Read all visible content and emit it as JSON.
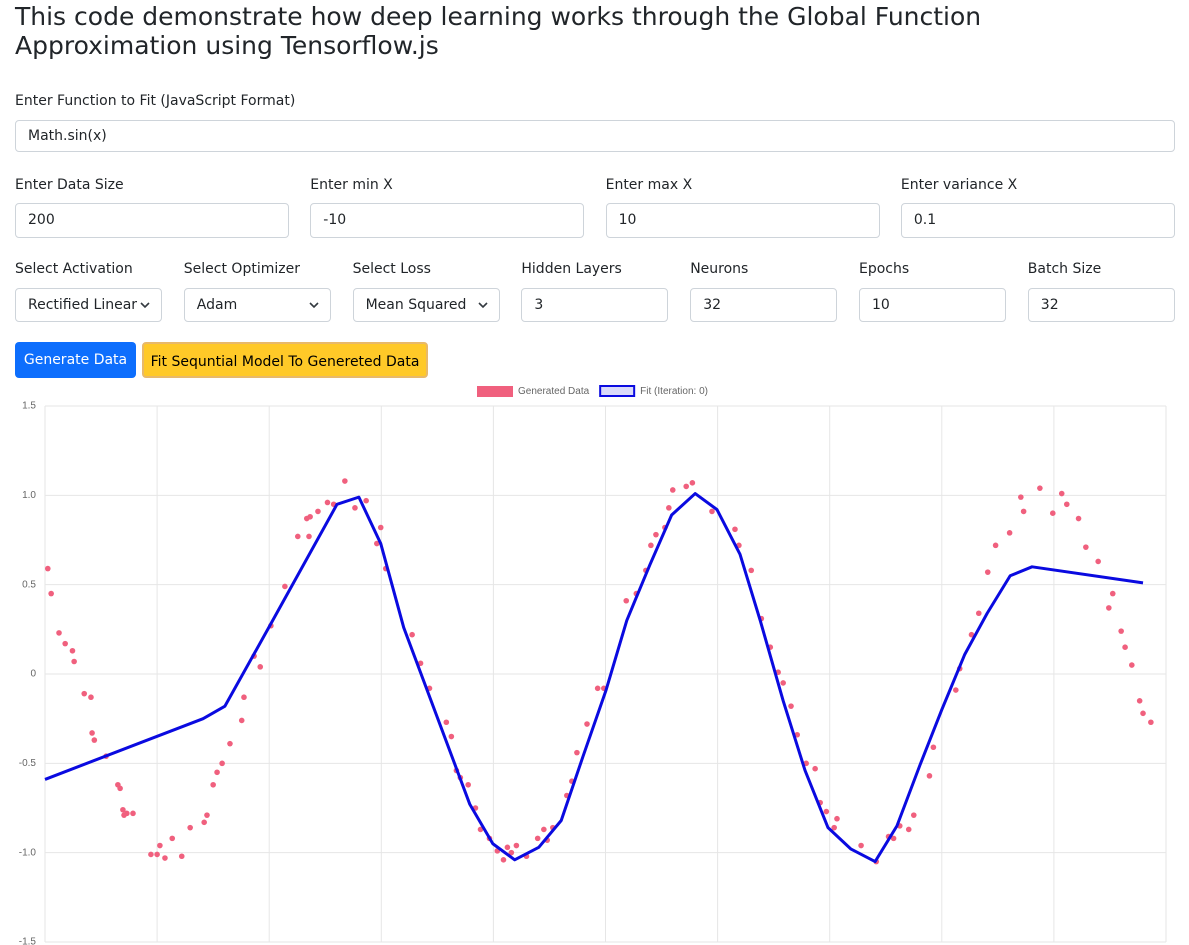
{
  "header": {
    "title": "This code demonstrate how deep learning works through the Global Function Approximation using Tensorflow.js"
  },
  "form": {
    "function": {
      "label": "Enter Function to Fit (JavaScript Format)",
      "value": "Math.sin(x)"
    },
    "row2": [
      {
        "label": "Enter Data Size",
        "value": "200"
      },
      {
        "label": "Enter min X",
        "value": "-10"
      },
      {
        "label": "Enter max X",
        "value": "10"
      },
      {
        "label": "Enter variance X",
        "value": "0.1"
      }
    ],
    "row3": [
      {
        "label": "Select Activation",
        "value": "Rectified Linear",
        "select": true
      },
      {
        "label": "Select Optimizer",
        "value": "Adam",
        "select": true
      },
      {
        "label": "Select Loss",
        "value": "Mean Squared",
        "select": true
      },
      {
        "label": "Hidden Layers",
        "value": "3"
      },
      {
        "label": "Neurons",
        "value": "32"
      },
      {
        "label": "Epochs",
        "value": "10"
      },
      {
        "label": "Batch Size",
        "value": "32"
      }
    ],
    "buttons": [
      "Generate Data",
      "Fit Sequntial Model To Genereted Data"
    ]
  },
  "chart_data": {
    "type": "scatter",
    "xlim": [
      -10,
      10
    ],
    "xticks": [
      -10,
      -8,
      -6,
      -4,
      -2,
      0,
      2,
      4,
      6,
      8,
      10
    ],
    "ylim": [
      -1.5,
      1.5
    ],
    "yticks": [
      1.5,
      {
        "value": 1,
        "label": "1.0"
      },
      0.5,
      0,
      -0.5,
      {
        "value": -1,
        "label": "-1.0"
      },
      -1.5
    ],
    "grid": true,
    "legend": "top",
    "series": [
      {
        "name": "Generated Data",
        "color": "#f0607e",
        "x": [
          -9.95,
          -9.89,
          -9.75,
          -9.64,
          -9.51,
          -9.48,
          -9.3,
          -9.18,
          -9.16,
          -9.12,
          -8.91,
          -8.7,
          -8.66,
          -8.61,
          -8.59,
          -8.54,
          -8.43,
          -8.11,
          -8,
          -7.95,
          -7.86,
          -7.73,
          -7.56,
          -7.41,
          -7.16,
          -7.11,
          -7,
          -6.93,
          -6.84,
          -6.7,
          -6.49,
          -6.45,
          -6.27,
          -6.16,
          -5.97,
          -5.72,
          -5.49,
          -5.33,
          -5.29,
          -5.27,
          -5.13,
          -4.96,
          -4.85,
          -4.65,
          -4.47,
          -4.27,
          -4.08,
          -4.01,
          -3.92,
          -3.45,
          -3.3,
          -3.14,
          -2.84,
          -2.75,
          -2.66,
          -2.59,
          -2.45,
          -2.32,
          -2.23,
          -2.07,
          -1.93,
          -1.82,
          -1.75,
          -1.68,
          -1.59,
          -1.41,
          -1.21,
          -1.1,
          -1.04,
          -0.94,
          -0.69,
          -0.6,
          -0.51,
          -0.33,
          -0.14,
          -0.03,
          0.37,
          0.55,
          0.72,
          0.81,
          0.9,
          1.06,
          1.13,
          1.2,
          1.44,
          1.55,
          1.9,
          2.31,
          2.38,
          2.6,
          2.78,
          2.94,
          3.08,
          3.17,
          3.31,
          3.42,
          3.58,
          3.74,
          3.83,
          3.94,
          4.08,
          4.13,
          4.56,
          4.83,
          5.05,
          5.14,
          5.25,
          5.41,
          5.5,
          5.78,
          5.85,
          6.25,
          6.32,
          6.53,
          6.66,
          6.82,
          6.96,
          7.21,
          7.41,
          7.46,
          7.75,
          7.98,
          8.14,
          8.23,
          8.44,
          8.57,
          8.79,
          8.98,
          9.05,
          9.2,
          9.27,
          9.39,
          9.53,
          9.59,
          9.73
        ],
        "values": [
          0.59,
          0.45,
          0.23,
          0.17,
          0.13,
          0.07,
          -0.11,
          -0.13,
          -0.33,
          -0.37,
          -0.46,
          -0.62,
          -0.64,
          -0.76,
          -0.79,
          -0.78,
          -0.78,
          -1.01,
          -1.01,
          -0.96,
          -1.03,
          -0.92,
          -1.02,
          -0.86,
          -0.83,
          -0.79,
          -0.62,
          -0.55,
          -0.5,
          -0.39,
          -0.26,
          -0.13,
          0.1,
          0.04,
          0.27,
          0.49,
          0.77,
          0.87,
          0.77,
          0.88,
          0.91,
          0.96,
          0.95,
          1.08,
          0.93,
          0.97,
          0.73,
          0.82,
          0.59,
          0.22,
          0.06,
          -0.08,
          -0.27,
          -0.35,
          -0.54,
          -0.58,
          -0.62,
          -0.75,
          -0.87,
          -0.92,
          -0.99,
          -1.04,
          -0.97,
          -1,
          -0.96,
          -1.02,
          -0.92,
          -0.87,
          -0.93,
          -0.86,
          -0.68,
          -0.6,
          -0.44,
          -0.28,
          -0.08,
          -0.08,
          0.41,
          0.45,
          0.58,
          0.72,
          0.78,
          0.82,
          0.93,
          1.03,
          1.05,
          1.07,
          0.91,
          0.81,
          0.72,
          0.58,
          0.31,
          0.15,
          0.01,
          -0.05,
          -0.18,
          -0.34,
          -0.5,
          -0.53,
          -0.72,
          -0.77,
          -0.86,
          -0.81,
          -0.96,
          -1.05,
          -0.91,
          -0.92,
          -0.85,
          -0.87,
          -0.79,
          -0.57,
          -0.41,
          -0.09,
          0.03,
          0.22,
          0.34,
          0.57,
          0.72,
          0.79,
          0.99,
          0.91,
          1.04,
          0.9,
          1.01,
          0.95,
          0.87,
          0.71,
          0.63,
          0.37,
          0.45,
          0.24,
          0.15,
          0.05,
          -0.15,
          -0.22,
          -0.27
        ]
      },
      {
        "name": "Fit (Iteration: 0)",
        "color": "#0a0ae0",
        "type": "line",
        "x": [
          -10,
          -7.18,
          -6.79,
          -5.99,
          -4.79,
          -4.4,
          -4.01,
          -3.6,
          -2.42,
          -2.01,
          -1.62,
          -1.19,
          -0.79,
          -0.4,
          0.01,
          0.38,
          0.79,
          1.18,
          1.6,
          1.99,
          2.4,
          2.76,
          3.17,
          3.56,
          3.97,
          4.38,
          4.81,
          5.2,
          5.61,
          6,
          6.41,
          6.81,
          7.22,
          7.61,
          9.59
        ],
        "values": [
          -0.59,
          -0.25,
          -0.18,
          0.27,
          0.95,
          0.99,
          0.73,
          0.26,
          -0.73,
          -0.95,
          -1.04,
          -0.97,
          -0.82,
          -0.46,
          -0.09,
          0.3,
          0.61,
          0.89,
          1.01,
          0.92,
          0.67,
          0.3,
          -0.15,
          -0.54,
          -0.86,
          -0.98,
          -1.05,
          -0.85,
          -0.51,
          -0.2,
          0.11,
          0.34,
          0.55,
          0.6,
          0.51
        ]
      }
    ]
  }
}
